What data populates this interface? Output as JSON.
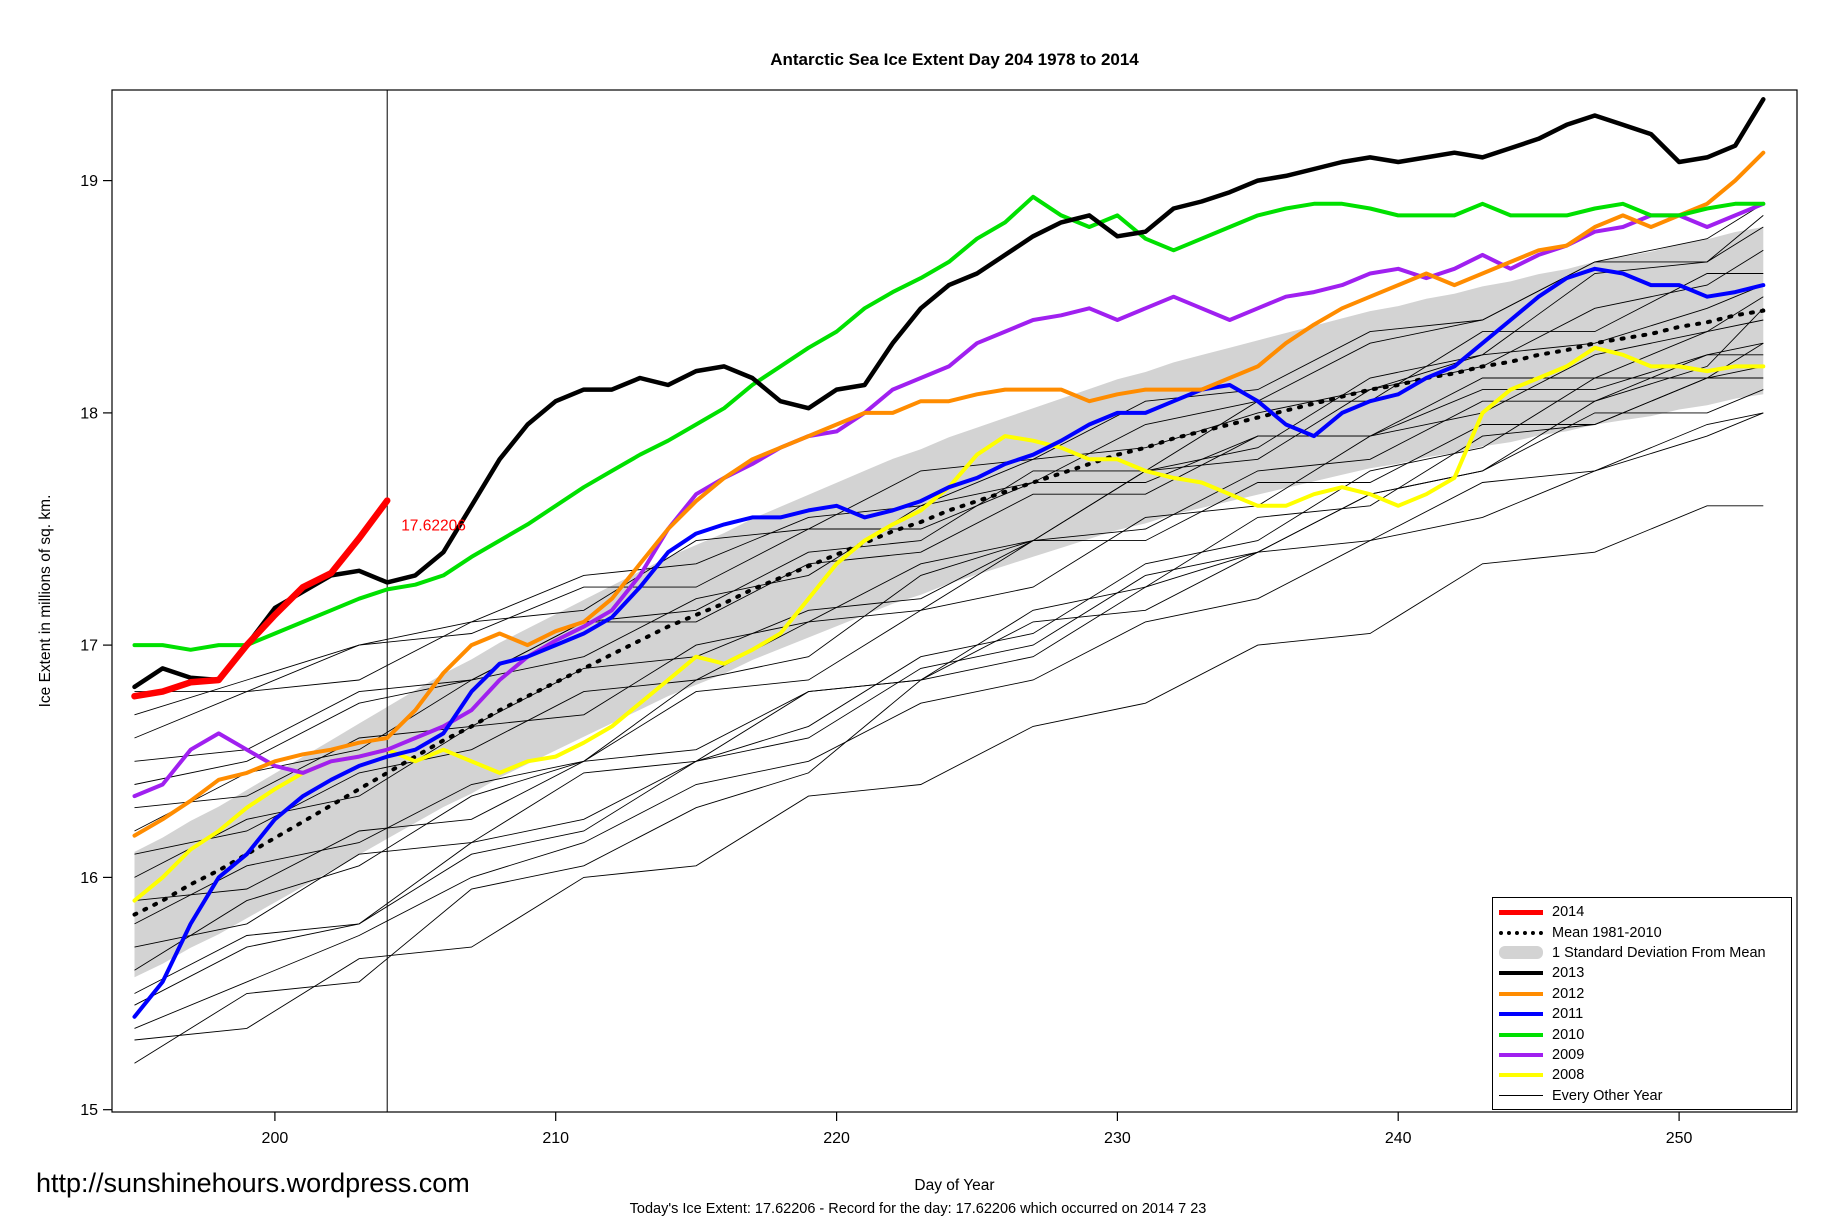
{
  "footer": {
    "url": "http://sunshinehours.wordpress.com",
    "status": "Today's Ice Extent: 17.62206  - Record for the day: 17.62206 which occurred on 2014 7 23"
  },
  "legend": {
    "items": [
      {
        "label": "2014",
        "swatch": "line",
        "color": "#FF0000",
        "weight": 5
      },
      {
        "label": "Mean 1981-2010",
        "swatch": "dotted",
        "color": "#000000",
        "weight": 4
      },
      {
        "label": "1 Standard Deviation From Mean",
        "swatch": "band",
        "color": "#D3D3D3"
      },
      {
        "label": "2013",
        "swatch": "line",
        "color": "#000000",
        "weight": 4
      },
      {
        "label": "2012",
        "swatch": "line",
        "color": "#FF8C00",
        "weight": 4
      },
      {
        "label": "2011",
        "swatch": "line",
        "color": "#0000FF",
        "weight": 4
      },
      {
        "label": "2010",
        "swatch": "line",
        "color": "#00E000",
        "weight": 4
      },
      {
        "label": "2009",
        "swatch": "line",
        "color": "#A020F0",
        "weight": 4
      },
      {
        "label": "2008",
        "swatch": "line",
        "color": "#FFFF00",
        "weight": 4
      },
      {
        "label": "Every Other Year",
        "swatch": "line",
        "color": "#000000",
        "weight": 1
      }
    ]
  },
  "chart_data": {
    "type": "line",
    "title": "Antarctic Sea Ice Extent Day 204 1978 to 2014",
    "xlabel": "Day of Year",
    "ylabel": "Ice Extent in millions of sq. km.",
    "xlim": [
      194.2,
      254.2
    ],
    "ylim": [
      14.99,
      19.39
    ],
    "xticks": [
      200,
      210,
      220,
      230,
      240,
      250
    ],
    "yticks": [
      15,
      16,
      17,
      18,
      19
    ],
    "vline_x": 204,
    "annotation": {
      "label": "17.62206",
      "x": 204,
      "y": 17.62206,
      "color": "#FF0000"
    },
    "x": [
      195,
      196,
      197,
      198,
      199,
      200,
      201,
      202,
      203,
      204,
      205,
      206,
      207,
      208,
      209,
      210,
      211,
      212,
      213,
      214,
      215,
      216,
      217,
      218,
      219,
      220,
      221,
      222,
      223,
      224,
      225,
      226,
      227,
      228,
      229,
      230,
      231,
      232,
      233,
      234,
      235,
      236,
      237,
      238,
      239,
      240,
      241,
      242,
      243,
      244,
      245,
      246,
      247,
      248,
      249,
      250,
      251,
      252,
      253
    ],
    "series_2014": {
      "name": "2014",
      "color": "#FF0000",
      "width": 6.5,
      "x": [
        195,
        196,
        197,
        198,
        199,
        200,
        201,
        202,
        203,
        204
      ],
      "values": [
        16.78,
        16.8,
        16.84,
        16.85,
        17.0,
        17.13,
        17.25,
        17.31,
        17.46,
        17.62206
      ]
    },
    "mean": {
      "name": "Mean 1981-2010",
      "color": "#000000",
      "values": [
        15.84,
        15.9,
        15.97,
        16.03,
        16.1,
        16.17,
        16.24,
        16.31,
        16.38,
        16.45,
        16.52,
        16.59,
        16.65,
        16.72,
        16.78,
        16.84,
        16.9,
        16.96,
        17.02,
        17.08,
        17.13,
        17.18,
        17.24,
        17.29,
        17.34,
        17.39,
        17.44,
        17.49,
        17.53,
        17.58,
        17.62,
        17.66,
        17.7,
        17.74,
        17.78,
        17.82,
        17.85,
        17.89,
        17.92,
        17.95,
        17.98,
        18.01,
        18.04,
        18.07,
        18.1,
        18.12,
        18.15,
        18.17,
        18.2,
        18.22,
        18.25,
        18.27,
        18.3,
        18.32,
        18.34,
        18.37,
        18.39,
        18.42,
        18.44
      ]
    },
    "band": {
      "name": "1 Standard Deviation From Mean",
      "color": "#D3D3D3",
      "sd_start": 0.27,
      "sd_end": 0.36
    },
    "series": [
      {
        "name": "2008",
        "color": "#FFFF00",
        "width": 4,
        "values": [
          15.9,
          16.0,
          16.12,
          16.2,
          16.3,
          16.38,
          16.45,
          16.5,
          16.52,
          16.55,
          16.5,
          16.55,
          16.5,
          16.45,
          16.5,
          16.52,
          16.58,
          16.65,
          16.75,
          16.85,
          16.95,
          16.92,
          16.98,
          17.05,
          17.2,
          17.35,
          17.45,
          17.52,
          17.58,
          17.68,
          17.82,
          17.9,
          17.88,
          17.85,
          17.8,
          17.8,
          17.75,
          17.72,
          17.7,
          17.65,
          17.6,
          17.6,
          17.65,
          17.68,
          17.65,
          17.6,
          17.65,
          17.72,
          18.0,
          18.1,
          18.15,
          18.2,
          18.28,
          18.25,
          18.2,
          18.2,
          18.18,
          18.2,
          18.2
        ]
      },
      {
        "name": "2009",
        "color": "#A020F0",
        "width": 4,
        "values": [
          16.35,
          16.4,
          16.55,
          16.62,
          16.55,
          16.48,
          16.45,
          16.5,
          16.52,
          16.55,
          16.6,
          16.65,
          16.72,
          16.85,
          16.95,
          17.02,
          17.08,
          17.15,
          17.3,
          17.5,
          17.65,
          17.72,
          17.78,
          17.85,
          17.9,
          17.92,
          18.0,
          18.1,
          18.15,
          18.2,
          18.3,
          18.35,
          18.4,
          18.42,
          18.45,
          18.4,
          18.45,
          18.5,
          18.45,
          18.4,
          18.45,
          18.5,
          18.52,
          18.55,
          18.6,
          18.62,
          18.58,
          18.62,
          18.68,
          18.62,
          18.68,
          18.72,
          18.78,
          18.8,
          18.85,
          18.85,
          18.8,
          18.85,
          18.9
        ]
      },
      {
        "name": "2011",
        "color": "#0000FF",
        "width": 4,
        "values": [
          15.4,
          15.55,
          15.8,
          16.0,
          16.1,
          16.25,
          16.35,
          16.42,
          16.48,
          16.52,
          16.55,
          16.62,
          16.8,
          16.92,
          16.95,
          17.0,
          17.05,
          17.12,
          17.25,
          17.4,
          17.48,
          17.52,
          17.55,
          17.55,
          17.58,
          17.6,
          17.55,
          17.58,
          17.62,
          17.68,
          17.72,
          17.78,
          17.82,
          17.88,
          17.95,
          18.0,
          18.0,
          18.05,
          18.1,
          18.12,
          18.05,
          17.95,
          17.9,
          18.0,
          18.05,
          18.08,
          18.15,
          18.2,
          18.3,
          18.4,
          18.5,
          18.58,
          18.62,
          18.6,
          18.55,
          18.55,
          18.5,
          18.52,
          18.55
        ]
      },
      {
        "name": "2012",
        "color": "#FF8C00",
        "width": 4,
        "values": [
          16.18,
          16.25,
          16.33,
          16.42,
          16.45,
          16.5,
          16.53,
          16.55,
          16.58,
          16.6,
          16.72,
          16.88,
          17.0,
          17.05,
          17.0,
          17.06,
          17.1,
          17.2,
          17.35,
          17.5,
          17.62,
          17.72,
          17.8,
          17.85,
          17.9,
          17.95,
          18.0,
          18.0,
          18.05,
          18.05,
          18.08,
          18.1,
          18.1,
          18.1,
          18.05,
          18.08,
          18.1,
          18.1,
          18.1,
          18.15,
          18.2,
          18.3,
          18.38,
          18.45,
          18.5,
          18.55,
          18.6,
          18.55,
          18.6,
          18.65,
          18.7,
          18.72,
          18.8,
          18.85,
          18.8,
          18.85,
          18.9,
          19.0,
          19.12
        ]
      },
      {
        "name": "2010",
        "color": "#00E000",
        "width": 4,
        "values": [
          17.0,
          17.0,
          16.98,
          17.0,
          17.0,
          17.05,
          17.1,
          17.15,
          17.2,
          17.24,
          17.26,
          17.3,
          17.38,
          17.45,
          17.52,
          17.6,
          17.68,
          17.75,
          17.82,
          17.88,
          17.95,
          18.02,
          18.12,
          18.2,
          18.28,
          18.35,
          18.45,
          18.52,
          18.58,
          18.65,
          18.75,
          18.82,
          18.93,
          18.85,
          18.8,
          18.85,
          18.75,
          18.7,
          18.75,
          18.8,
          18.85,
          18.88,
          18.9,
          18.9,
          18.88,
          18.85,
          18.85,
          18.85,
          18.9,
          18.85,
          18.85,
          18.85,
          18.88,
          18.9,
          18.85,
          18.85,
          18.88,
          18.9,
          18.9
        ]
      },
      {
        "name": "2013",
        "color": "#000000",
        "width": 4.5,
        "values": [
          16.82,
          16.9,
          16.86,
          16.85,
          17.0,
          17.16,
          17.23,
          17.3,
          17.32,
          17.27,
          17.3,
          17.4,
          17.6,
          17.8,
          17.95,
          18.05,
          18.1,
          18.1,
          18.15,
          18.12,
          18.18,
          18.2,
          18.15,
          18.05,
          18.02,
          18.1,
          18.12,
          18.3,
          18.45,
          18.55,
          18.6,
          18.68,
          18.76,
          18.82,
          18.85,
          18.76,
          18.78,
          18.88,
          18.91,
          18.95,
          19.0,
          19.02,
          19.05,
          19.08,
          19.1,
          19.08,
          19.1,
          19.12,
          19.1,
          19.14,
          19.18,
          19.24,
          19.28,
          19.24,
          19.2,
          19.08,
          19.1,
          19.15,
          19.35
        ]
      }
    ],
    "other_years": {
      "name": "Every Other Year",
      "color": "#000000",
      "x": [
        195,
        199,
        203,
        207,
        211,
        215,
        219,
        223,
        227,
        231,
        235,
        239,
        243,
        247,
        251,
        253
      ],
      "lines": [
        [
          15.2,
          15.5,
          15.55,
          15.95,
          16.05,
          16.3,
          16.45,
          16.85,
          16.95,
          17.25,
          17.4,
          17.65,
          17.75,
          18.0,
          18.0,
          18.1
        ],
        [
          15.3,
          15.35,
          15.65,
          15.7,
          16.0,
          16.05,
          16.35,
          16.4,
          16.65,
          16.75,
          17.0,
          17.05,
          17.35,
          17.4,
          17.6,
          17.6
        ],
        [
          15.5,
          15.75,
          15.8,
          16.15,
          16.25,
          16.5,
          16.65,
          16.95,
          17.05,
          17.35,
          17.45,
          17.75,
          17.85,
          18.15,
          18.15,
          18.3
        ],
        [
          15.6,
          15.9,
          16.05,
          16.35,
          16.5,
          16.85,
          16.95,
          17.3,
          17.45,
          17.75,
          17.85,
          18.15,
          18.25,
          18.6,
          18.65,
          18.85
        ],
        [
          15.7,
          15.8,
          16.1,
          16.15,
          16.45,
          16.5,
          16.8,
          16.85,
          17.15,
          17.25,
          17.55,
          17.6,
          17.9,
          17.95,
          18.15,
          18.2
        ],
        [
          15.8,
          16.05,
          16.15,
          16.4,
          16.5,
          16.8,
          16.85,
          17.15,
          17.25,
          17.55,
          17.6,
          17.9,
          18.0,
          18.25,
          18.35,
          18.5
        ],
        [
          15.9,
          15.95,
          16.2,
          16.25,
          16.5,
          16.55,
          16.8,
          16.85,
          17.1,
          17.15,
          17.4,
          17.45,
          17.7,
          17.75,
          17.95,
          18.0
        ],
        [
          16.0,
          16.25,
          16.35,
          16.65,
          16.7,
          17.0,
          17.1,
          17.35,
          17.45,
          17.75,
          17.8,
          18.1,
          18.2,
          18.45,
          18.55,
          18.7
        ],
        [
          16.1,
          16.2,
          16.45,
          16.55,
          16.8,
          16.85,
          17.1,
          17.15,
          17.45,
          17.5,
          17.75,
          17.8,
          18.05,
          18.05,
          18.25,
          18.3
        ],
        [
          16.2,
          16.45,
          16.55,
          16.85,
          16.95,
          17.2,
          17.3,
          17.6,
          17.7,
          17.95,
          18.05,
          18.3,
          18.4,
          18.65,
          18.75,
          18.9
        ],
        [
          16.3,
          16.35,
          16.6,
          16.65,
          16.9,
          16.95,
          17.15,
          17.2,
          17.45,
          17.45,
          17.7,
          17.7,
          17.95,
          17.95,
          18.15,
          18.15
        ],
        [
          16.4,
          16.5,
          16.75,
          16.85,
          17.1,
          17.15,
          17.4,
          17.45,
          17.75,
          17.75,
          18.05,
          18.05,
          18.35,
          18.35,
          18.6,
          18.6
        ],
        [
          16.5,
          16.55,
          16.8,
          16.85,
          17.1,
          17.1,
          17.35,
          17.4,
          17.65,
          17.65,
          17.9,
          17.9,
          18.15,
          18.15,
          18.35,
          18.4
        ],
        [
          16.6,
          16.8,
          16.85,
          17.1,
          17.15,
          17.45,
          17.5,
          17.75,
          17.8,
          18.05,
          18.1,
          18.35,
          18.4,
          18.65,
          18.65,
          18.8
        ],
        [
          16.8,
          16.8,
          17.0,
          17.05,
          17.25,
          17.25,
          17.5,
          17.5,
          17.7,
          17.7,
          17.9,
          17.9,
          18.1,
          18.1,
          18.25,
          18.25
        ],
        [
          15.45,
          15.7,
          15.8,
          16.1,
          16.2,
          16.5,
          16.6,
          16.9,
          17.0,
          17.3,
          17.4,
          17.65,
          17.75,
          18.05,
          18.2,
          18.45
        ],
        [
          15.35,
          15.55,
          15.75,
          16.0,
          16.15,
          16.4,
          16.5,
          16.75,
          16.85,
          17.1,
          17.2,
          17.45,
          17.55,
          17.75,
          17.9,
          18.0
        ],
        [
          16.7,
          16.85,
          17.0,
          17.1,
          17.3,
          17.35,
          17.55,
          17.6,
          17.8,
          17.85,
          18.0,
          18.1,
          18.25,
          18.3,
          18.45,
          18.55
        ]
      ]
    }
  }
}
